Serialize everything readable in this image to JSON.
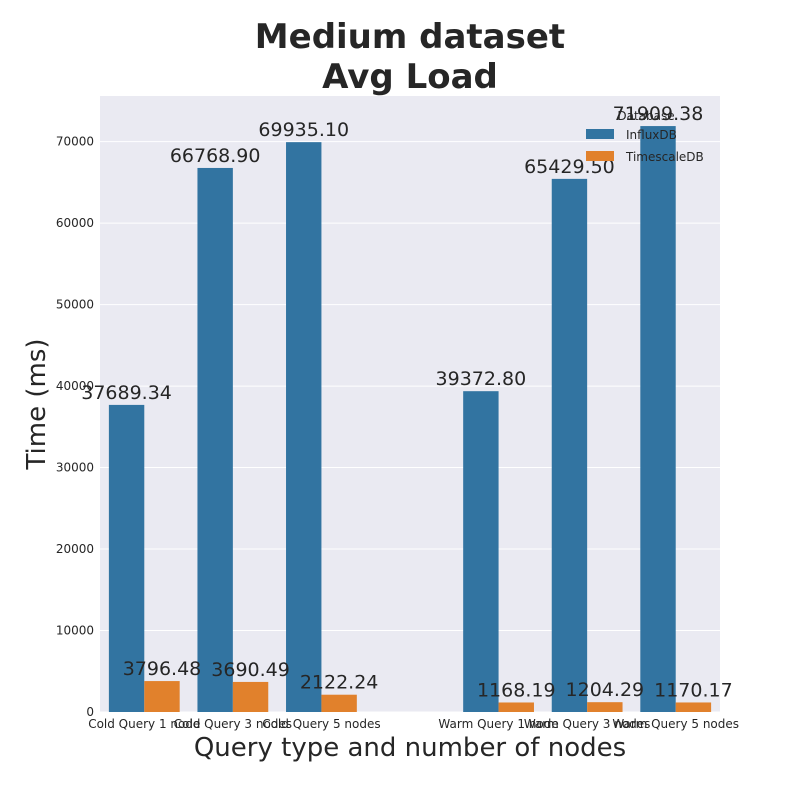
{
  "chart_data": {
    "type": "bar",
    "title": [
      "Medium dataset",
      "Avg Load"
    ],
    "xlabel": "Query type and number of nodes",
    "ylabel": "Time (ms)",
    "ylim": [
      0,
      75600
    ],
    "yticks": [
      0,
      10000,
      20000,
      30000,
      40000,
      50000,
      60000,
      70000
    ],
    "grid": true,
    "legend": {
      "title": "Database",
      "placement": "top-right"
    },
    "categories": [
      "Cold Query 1 node",
      "Cold Query 3 nodes",
      "Cold Query 5 nodes",
      "",
      "Warm Query 1 node",
      "Warm Query 3 nodes",
      "Warm Query 5 nodes"
    ],
    "series": [
      {
        "name": "InfluxDB",
        "color": "#3274a1",
        "values": [
          37689.34,
          66768.9,
          69935.1,
          null,
          39372.8,
          65429.5,
          71909.38
        ],
        "labels": [
          "37689.34",
          "66768.90",
          "69935.10",
          "",
          "39372.80",
          "65429.50",
          "71909.38"
        ]
      },
      {
        "name": "TimescaleDB",
        "color": "#e1812c",
        "values": [
          3796.48,
          3690.49,
          2122.24,
          null,
          1168.19,
          1204.29,
          1170.17
        ],
        "labels": [
          "3796.48",
          "3690.49",
          "2122.24",
          "",
          "1168.19",
          "1204.29",
          "1170.17"
        ]
      }
    ]
  }
}
